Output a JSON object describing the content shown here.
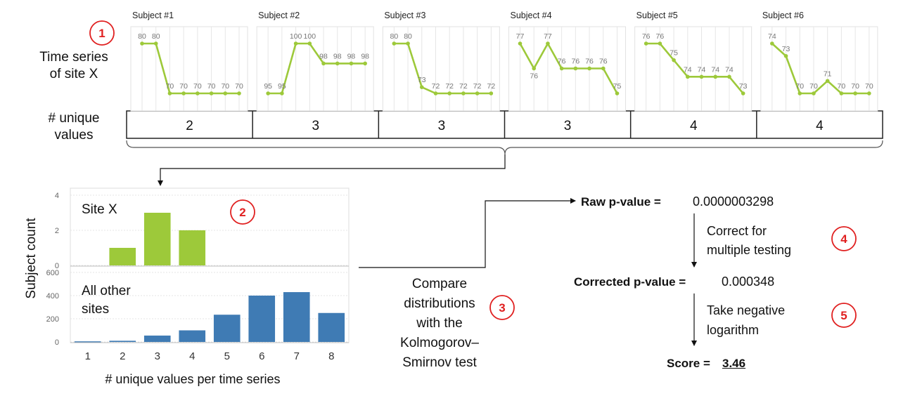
{
  "colors": {
    "green": "#9dc93a",
    "blue": "#3f7bb4",
    "red": "#e02020",
    "grid": "#d0d0d0",
    "axis": "#777777"
  },
  "step1": {
    "marker": "1",
    "row_label_line1": "Time series",
    "row_label_line2": "of site X",
    "unique_label_line1": "# unique",
    "unique_label_line2": "values"
  },
  "subjects": [
    {
      "name": "Subject #1",
      "values": [
        80,
        80,
        70,
        70,
        70,
        70,
        70,
        70
      ],
      "unique": "2"
    },
    {
      "name": "Subject #2",
      "values": [
        95,
        95,
        100,
        100,
        98,
        98,
        98,
        98
      ],
      "unique": "3"
    },
    {
      "name": "Subject #3",
      "values": [
        80,
        80,
        73,
        72,
        72,
        72,
        72,
        72
      ],
      "unique": "3"
    },
    {
      "name": "Subject #4",
      "values": [
        77,
        76,
        77,
        76,
        76,
        76,
        76,
        75
      ],
      "unique": "3"
    },
    {
      "name": "Subject #5",
      "values": [
        76,
        76,
        75,
        74,
        74,
        74,
        74,
        73
      ],
      "unique": "4"
    },
    {
      "name": "Subject #6",
      "values": [
        74,
        73,
        70,
        70,
        71,
        70,
        70,
        70
      ],
      "unique": "4"
    }
  ],
  "chart_data": {
    "type": "bar",
    "categories": [
      "1",
      "2",
      "3",
      "4",
      "5",
      "6",
      "7",
      "8"
    ],
    "xlabel": "# unique values per time series",
    "ylabel": "Subject count",
    "panels": [
      {
        "name": "Site X",
        "values": [
          0,
          1,
          3,
          2,
          0,
          0,
          0,
          0
        ],
        "ylim": [
          0,
          4
        ],
        "yticks": [
          "0",
          "2",
          "4"
        ],
        "color": "#9dc93a"
      },
      {
        "name_line1": "All other",
        "name_line2": "sites",
        "values": [
          5,
          10,
          55,
          100,
          235,
          400,
          430,
          250
        ],
        "ylim": [
          0,
          600
        ],
        "yticks": [
          "0",
          "200",
          "400",
          "600"
        ],
        "color": "#3f7bb4"
      }
    ]
  },
  "step2": {
    "marker": "2"
  },
  "step3": {
    "marker": "3",
    "lines": [
      "Compare",
      "distributions",
      "with the",
      "Kolmogorov–",
      "Smirnov test"
    ]
  },
  "step4": {
    "marker": "4",
    "raw_label": "Raw p-value =",
    "raw_value": "0.0000003298",
    "note_line1": "Correct for",
    "note_line2": "multiple testing"
  },
  "step5": {
    "marker": "5",
    "corrected_label": "Corrected p-value =",
    "corrected_value": "0.000348",
    "note_line1": "Take negative",
    "note_line2": "logarithm",
    "score_label": "Score =",
    "score_value": "3.46"
  }
}
